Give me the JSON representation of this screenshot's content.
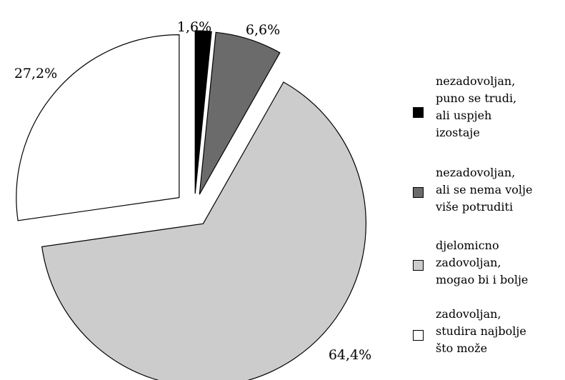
{
  "chart_data": {
    "type": "pie",
    "slices": [
      {
        "label": "nezadovoljan,\npuno se trudi,\nali uspjeh\nizostaje",
        "value": 1.6,
        "display": "1,6%",
        "color": "#000000",
        "exploded": true
      },
      {
        "label": "nezadovoljan,\nali se nema volje\nviše potruditi",
        "value": 6.6,
        "display": "6,6%",
        "color": "#6b6b6b",
        "exploded": true
      },
      {
        "label": "djelomicno\nzadovoljan,\nmogao bi i bolje",
        "value": 64.4,
        "display": "64,4%",
        "color": "#cccccc",
        "exploded": true
      },
      {
        "label": "zadovoljan,\nstudira najbolje\nšto može",
        "value": 27.2,
        "display": "27,2%",
        "color": "#ffffff",
        "exploded": true
      }
    ],
    "legend": "right",
    "start_angle_deg": 0,
    "direction": "clockwise"
  }
}
